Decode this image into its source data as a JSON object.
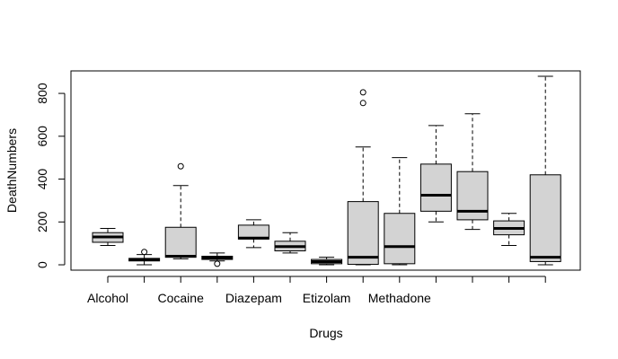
{
  "chart_data": {
    "type": "boxplot",
    "xlabel": "Drugs",
    "ylabel": "DeathNumbers",
    "ylim": [
      -25,
      905
    ],
    "yticks": [
      0,
      200,
      400,
      600,
      800
    ],
    "category_tick_labels": [
      "Alcohol",
      "Cocaine",
      "Diazepam",
      "Etizolam",
      "Methadone"
    ],
    "grid": false,
    "legend": "none",
    "box_fill": "#d3d3d3",
    "boxes": [
      {
        "whisker_low": 90,
        "q1": 105,
        "median": 130,
        "q3": 150,
        "whisker_high": 170,
        "outliers": []
      },
      {
        "whisker_low": 0,
        "q1": 18,
        "median": 25,
        "q3": 30,
        "whisker_high": 48,
        "outliers": [
          60
        ]
      },
      {
        "whisker_low": 28,
        "q1": 35,
        "median": 40,
        "q3": 175,
        "whisker_high": 370,
        "outliers": [
          460
        ]
      },
      {
        "whisker_low": 18,
        "q1": 25,
        "median": 32,
        "q3": 40,
        "whisker_high": 55,
        "outliers": [
          5
        ]
      },
      {
        "whisker_low": 80,
        "q1": 120,
        "median": 125,
        "q3": 185,
        "whisker_high": 210,
        "outliers": []
      },
      {
        "whisker_low": 55,
        "q1": 65,
        "median": 85,
        "q3": 110,
        "whisker_high": 150,
        "outliers": []
      },
      {
        "whisker_low": 0,
        "q1": 5,
        "median": 15,
        "q3": 25,
        "whisker_high": 35,
        "outliers": []
      },
      {
        "whisker_low": 0,
        "q1": 2,
        "median": 35,
        "q3": 295,
        "whisker_high": 550,
        "outliers": [
          755,
          805
        ]
      },
      {
        "whisker_low": 0,
        "q1": 5,
        "median": 85,
        "q3": 240,
        "whisker_high": 500,
        "outliers": []
      },
      {
        "whisker_low": 200,
        "q1": 250,
        "median": 325,
        "q3": 470,
        "whisker_high": 650,
        "outliers": []
      },
      {
        "whisker_low": 165,
        "q1": 210,
        "median": 250,
        "q3": 435,
        "whisker_high": 705,
        "outliers": []
      },
      {
        "whisker_low": 90,
        "q1": 140,
        "median": 170,
        "q3": 205,
        "whisker_high": 240,
        "outliers": []
      },
      {
        "whisker_low": 0,
        "q1": 15,
        "median": 35,
        "q3": 420,
        "whisker_high": 880,
        "outliers": []
      }
    ]
  }
}
